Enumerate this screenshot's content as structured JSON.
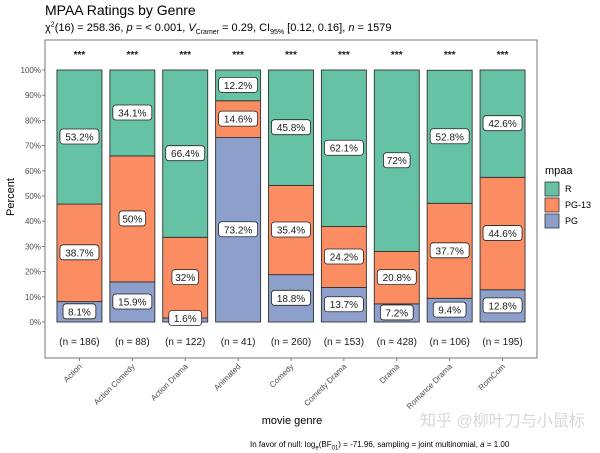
{
  "chart_data": {
    "type": "bar",
    "stacked": true,
    "title": "MPAA Ratings by Genre",
    "subtitle": {
      "chi_label": "χ",
      "chi_sup": "2",
      "chi_rest": "(16) = 258.36, ",
      "p_label": "p",
      "p_rest": " = < 0.001, ",
      "v_label": "V",
      "v_sub": "Cramer",
      "v_rest": " = 0.29, CI",
      "ci_sub": "95%",
      "ci_rest": " [0.12, 0.16], ",
      "n_label": "n",
      "n_rest": " = 1579"
    },
    "xlabel": "movie genre",
    "ylabel": "Percent",
    "ylim": [
      0,
      100
    ],
    "yticks": [
      "0%",
      "10%",
      "20%",
      "30%",
      "40%",
      "50%",
      "60%",
      "70%",
      "80%",
      "90%",
      "100%"
    ],
    "categories": [
      "Action",
      "Action Comedy",
      "Action Drama",
      "Animated",
      "Comedy",
      "Comedy Drama",
      "Drama",
      "Romance Drama",
      "RomCom"
    ],
    "counts": [
      "(n = 186)",
      "(n = 88)",
      "(n = 122)",
      "(n = 41)",
      "(n = 260)",
      "(n = 153)",
      "(n = 428)",
      "(n = 106)",
      "(n = 195)"
    ],
    "significance": [
      "***",
      "***",
      "***",
      "***",
      "***",
      "***",
      "***",
      "***",
      "***"
    ],
    "series": [
      {
        "name": "PG",
        "color": "#8DA0CB",
        "values": [
          8.1,
          15.9,
          1.6,
          73.2,
          18.8,
          13.7,
          7.2,
          9.4,
          12.8
        ],
        "labels": [
          "8.1%",
          "15.9%",
          "1.6%",
          "73.2%",
          "18.8%",
          "13.7%",
          "7.2%",
          "9.4%",
          "12.8%"
        ]
      },
      {
        "name": "PG-13",
        "color": "#FC8D62",
        "values": [
          38.7,
          50,
          32,
          14.6,
          35.4,
          24.2,
          20.8,
          37.7,
          44.6
        ],
        "labels": [
          "38.7%",
          "50%",
          "32%",
          "14.6%",
          "35.4%",
          "24.2%",
          "20.8%",
          "37.7%",
          "44.6%"
        ]
      },
      {
        "name": "R",
        "color": "#66C2A5",
        "values": [
          53.2,
          34.1,
          66.4,
          12.2,
          45.8,
          62.1,
          72,
          52.8,
          42.6
        ],
        "labels": [
          "53.2%",
          "34.1%",
          "66.4%",
          "12.2%",
          "45.8%",
          "62.1%",
          "72%",
          "52.8%",
          "42.6%"
        ]
      }
    ],
    "legend": {
      "title": "mpaa",
      "position": "right",
      "entries": [
        {
          "label": "R",
          "color": "#66C2A5"
        },
        {
          "label": "PG-13",
          "color": "#FC8D62"
        },
        {
          "label": "PG",
          "color": "#8DA0CB"
        }
      ]
    },
    "caption": {
      "prefix": "In favor of null: log",
      "log_sub": "e",
      "mid": "(BF",
      "bf_sub": "01",
      "suffix": ") = -71.96, sampling = joint multinomial, ",
      "a_label": "a",
      "a_rest": " = 1.00"
    }
  },
  "watermark": "知乎 @柳叶刀与小鼠标"
}
